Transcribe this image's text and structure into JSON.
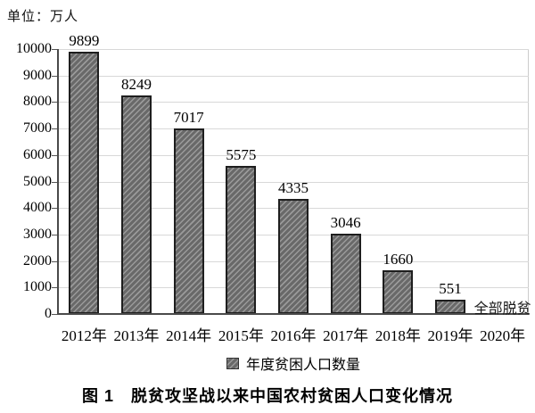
{
  "unit_label": "单位：万人",
  "caption": "图 1　脱贫攻坚战以来中国农村贫困人口变化情况",
  "legend": {
    "label": "年度贫困人口数量"
  },
  "colors": {
    "bar_fill": "#696969",
    "bar_stripe": "#9a9a9a",
    "bar_border": "#1e1e1e",
    "gridline": "#d8d8d8",
    "axis": "#4a4a4a",
    "text": "#000000",
    "background": "#ffffff"
  },
  "chart_data": {
    "type": "bar",
    "title": "图 1　脱贫攻坚战以来中国农村贫困人口变化情况",
    "unit": "单位：万人",
    "categories": [
      "2012年",
      "2013年",
      "2014年",
      "2015年",
      "2016年",
      "2017年",
      "2018年",
      "2019年",
      "2020年"
    ],
    "values": [
      9899,
      8249,
      7017,
      5575,
      4335,
      3046,
      1660,
      551,
      null
    ],
    "data_labels": [
      "9899",
      "8249",
      "7017",
      "5575",
      "4335",
      "3046",
      "1660",
      "551",
      ""
    ],
    "annotations": [
      {
        "category_index": 8,
        "text": "全部脱贫"
      }
    ],
    "xlabel": "",
    "ylabel": "单位：万人",
    "ylim": [
      0,
      10000
    ],
    "ytick_interval": 1000,
    "yticks": [
      0,
      1000,
      2000,
      3000,
      4000,
      5000,
      6000,
      7000,
      8000,
      9000,
      10000
    ],
    "grid": true,
    "legend_entries": [
      "年度贫困人口数量"
    ],
    "legend_position": "bottom",
    "bar_style": "diagonal-hatch"
  }
}
